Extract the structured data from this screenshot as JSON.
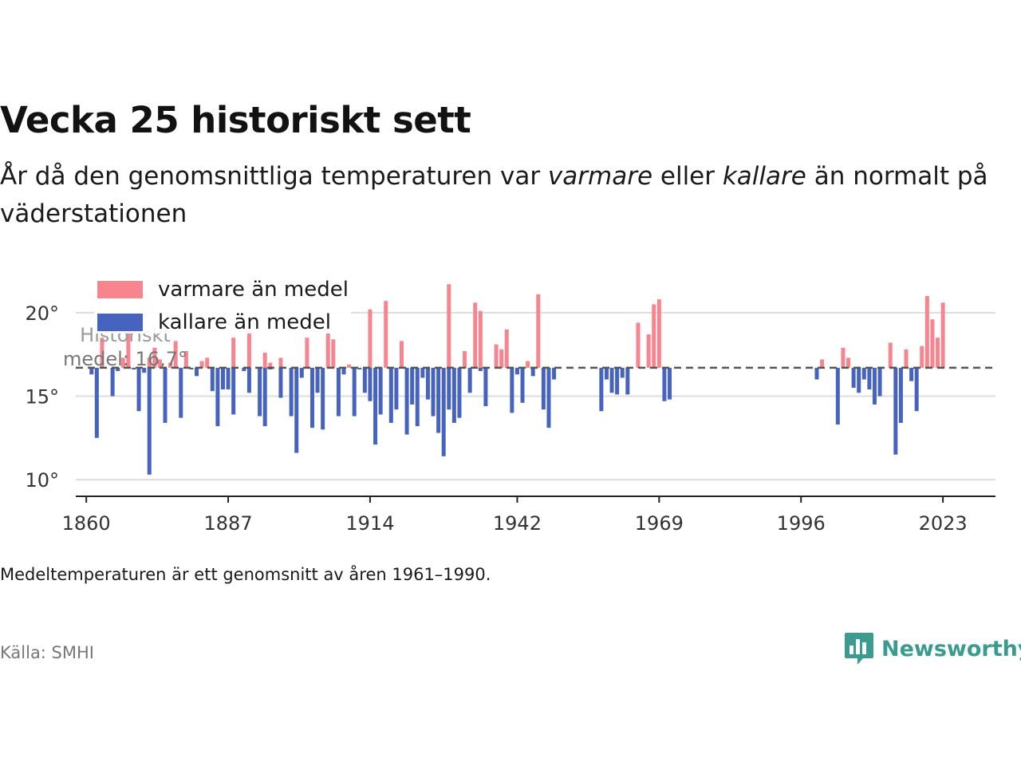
{
  "title": "Vecka 25 historiskt sett",
  "subtitle": {
    "part1": "År då den genomsnittliga temperaturen var ",
    "warm_word": "varmare",
    "part2": " eller ",
    "cold_word": "kallare",
    "part3": " än normalt på väderstationen"
  },
  "note": "Medeltemperaturen är ett genomsnitt av åren 1961–1990.",
  "source": "Källa: SMHI",
  "logo": {
    "text": "Newsworthy",
    "icon": "newsworthy-chat-bars-icon"
  },
  "colors": {
    "warm": "#f7848f",
    "cold": "#4664bf",
    "mean_line": "#555555",
    "grid": "#dcdcdc",
    "brand": "#3a9b8e"
  },
  "chart_data": {
    "type": "bar",
    "baseline": 16.7,
    "mean_label": [
      "Historiskt",
      "medel: 16,7°"
    ],
    "ylim": [
      9,
      22
    ],
    "yticks": [
      10,
      15,
      20
    ],
    "ytick_labels": [
      "10°",
      "15°",
      "20°"
    ],
    "xlim": [
      1858,
      2033
    ],
    "xticks": [
      1860,
      1887,
      1914,
      1942,
      1969,
      1996,
      2023
    ],
    "grid": true,
    "legend": {
      "placement": "top-left",
      "entries": [
        {
          "label": "varmare än medel",
          "color": "#f7848f"
        },
        {
          "label": "kallare än medel",
          "color": "#4664bf"
        }
      ]
    },
    "series": [
      {
        "name": "varmare än medel",
        "color": "#f7848f",
        "points": [
          {
            "x": 1863,
            "y": 18.5
          },
          {
            "x": 1867,
            "y": 17.3
          },
          {
            "x": 1868,
            "y": 19.0
          },
          {
            "x": 1872,
            "y": 17.3
          },
          {
            "x": 1873,
            "y": 17.9
          },
          {
            "x": 1874,
            "y": 17.2
          },
          {
            "x": 1876,
            "y": 17.0
          },
          {
            "x": 1877,
            "y": 18.3
          },
          {
            "x": 1879,
            "y": 17.7
          },
          {
            "x": 1882,
            "y": 17.1
          },
          {
            "x": 1883,
            "y": 17.3
          },
          {
            "x": 1888,
            "y": 18.5
          },
          {
            "x": 1891,
            "y": 18.9
          },
          {
            "x": 1894,
            "y": 17.6
          },
          {
            "x": 1895,
            "y": 17.0
          },
          {
            "x": 1897,
            "y": 17.3
          },
          {
            "x": 1902,
            "y": 18.5
          },
          {
            "x": 1906,
            "y": 18.8
          },
          {
            "x": 1907,
            "y": 18.4
          },
          {
            "x": 1910,
            "y": 16.9
          },
          {
            "x": 1914,
            "y": 20.2
          },
          {
            "x": 1917,
            "y": 20.7
          },
          {
            "x": 1920,
            "y": 18.3
          },
          {
            "x": 1929,
            "y": 21.7
          },
          {
            "x": 1932,
            "y": 17.7
          },
          {
            "x": 1934,
            "y": 20.6
          },
          {
            "x": 1935,
            "y": 20.1
          },
          {
            "x": 1938,
            "y": 18.1
          },
          {
            "x": 1939,
            "y": 17.8
          },
          {
            "x": 1940,
            "y": 19.0
          },
          {
            "x": 1944,
            "y": 17.1
          },
          {
            "x": 1946,
            "y": 21.1
          },
          {
            "x": 1965,
            "y": 19.4
          },
          {
            "x": 1967,
            "y": 18.7
          },
          {
            "x": 1968,
            "y": 20.5
          },
          {
            "x": 1969,
            "y": 20.8
          },
          {
            "x": 2000,
            "y": 17.2
          },
          {
            "x": 2004,
            "y": 17.9
          },
          {
            "x": 2005,
            "y": 17.3
          },
          {
            "x": 2013,
            "y": 18.2
          },
          {
            "x": 2016,
            "y": 17.8
          },
          {
            "x": 2019,
            "y": 18.0
          },
          {
            "x": 2020,
            "y": 21.0
          },
          {
            "x": 2021,
            "y": 19.6
          },
          {
            "x": 2022,
            "y": 18.5
          },
          {
            "x": 2023,
            "y": 20.6
          }
        ]
      },
      {
        "name": "kallare än medel",
        "color": "#4664bf",
        "points": [
          {
            "x": 1861,
            "y": 16.3
          },
          {
            "x": 1862,
            "y": 12.5
          },
          {
            "x": 1865,
            "y": 15.0
          },
          {
            "x": 1866,
            "y": 16.5
          },
          {
            "x": 1869,
            "y": 16.6
          },
          {
            "x": 1870,
            "y": 14.1
          },
          {
            "x": 1871,
            "y": 16.4
          },
          {
            "x": 1872,
            "y": 10.3
          },
          {
            "x": 1875,
            "y": 13.4
          },
          {
            "x": 1878,
            "y": 13.7
          },
          {
            "x": 1880,
            "y": 16.6
          },
          {
            "x": 1881,
            "y": 16.2
          },
          {
            "x": 1884,
            "y": 15.3
          },
          {
            "x": 1885,
            "y": 13.2
          },
          {
            "x": 1886,
            "y": 15.4
          },
          {
            "x": 1887,
            "y": 15.4
          },
          {
            "x": 1888,
            "y": 13.9
          },
          {
            "x": 1890,
            "y": 16.5
          },
          {
            "x": 1891,
            "y": 15.2
          },
          {
            "x": 1893,
            "y": 13.8
          },
          {
            "x": 1894,
            "y": 13.2
          },
          {
            "x": 1895,
            "y": 16.6
          },
          {
            "x": 1897,
            "y": 14.9
          },
          {
            "x": 1899,
            "y": 13.8
          },
          {
            "x": 1900,
            "y": 11.6
          },
          {
            "x": 1901,
            "y": 16.1
          },
          {
            "x": 1903,
            "y": 13.1
          },
          {
            "x": 1904,
            "y": 15.2
          },
          {
            "x": 1905,
            "y": 13.0
          },
          {
            "x": 1908,
            "y": 13.8
          },
          {
            "x": 1909,
            "y": 16.3
          },
          {
            "x": 1911,
            "y": 13.8
          },
          {
            "x": 1912,
            "y": 16.6
          },
          {
            "x": 1913,
            "y": 15.2
          },
          {
            "x": 1914,
            "y": 14.7
          },
          {
            "x": 1915,
            "y": 12.1
          },
          {
            "x": 1916,
            "y": 13.9
          },
          {
            "x": 1918,
            "y": 13.4
          },
          {
            "x": 1919,
            "y": 14.2
          },
          {
            "x": 1921,
            "y": 12.7
          },
          {
            "x": 1922,
            "y": 14.5
          },
          {
            "x": 1923,
            "y": 13.2
          },
          {
            "x": 1924,
            "y": 16.1
          },
          {
            "x": 1925,
            "y": 14.8
          },
          {
            "x": 1926,
            "y": 13.8
          },
          {
            "x": 1927,
            "y": 12.8
          },
          {
            "x": 1928,
            "y": 11.4
          },
          {
            "x": 1929,
            "y": 14.2
          },
          {
            "x": 1930,
            "y": 13.4
          },
          {
            "x": 1931,
            "y": 13.7
          },
          {
            "x": 1933,
            "y": 15.2
          },
          {
            "x": 1935,
            "y": 16.5
          },
          {
            "x": 1936,
            "y": 14.4
          },
          {
            "x": 1941,
            "y": 14.0
          },
          {
            "x": 1942,
            "y": 16.3
          },
          {
            "x": 1943,
            "y": 14.6
          },
          {
            "x": 1945,
            "y": 16.2
          },
          {
            "x": 1947,
            "y": 14.2
          },
          {
            "x": 1948,
            "y": 13.1
          },
          {
            "x": 1949,
            "y": 16.0
          },
          {
            "x": 1958,
            "y": 14.1
          },
          {
            "x": 1959,
            "y": 16.0
          },
          {
            "x": 1960,
            "y": 15.2
          },
          {
            "x": 1961,
            "y": 15.1
          },
          {
            "x": 1962,
            "y": 16.1
          },
          {
            "x": 1963,
            "y": 15.1
          },
          {
            "x": 1970,
            "y": 14.7
          },
          {
            "x": 1971,
            "y": 14.8
          },
          {
            "x": 1999,
            "y": 16.0
          },
          {
            "x": 2003,
            "y": 13.3
          },
          {
            "x": 2006,
            "y": 15.5
          },
          {
            "x": 2007,
            "y": 15.2
          },
          {
            "x": 2008,
            "y": 16.0
          },
          {
            "x": 2009,
            "y": 15.4
          },
          {
            "x": 2010,
            "y": 14.5
          },
          {
            "x": 2011,
            "y": 15.0
          },
          {
            "x": 2014,
            "y": 11.5
          },
          {
            "x": 2015,
            "y": 13.4
          },
          {
            "x": 2017,
            "y": 15.9
          },
          {
            "x": 2018,
            "y": 14.1
          }
        ]
      }
    ]
  }
}
